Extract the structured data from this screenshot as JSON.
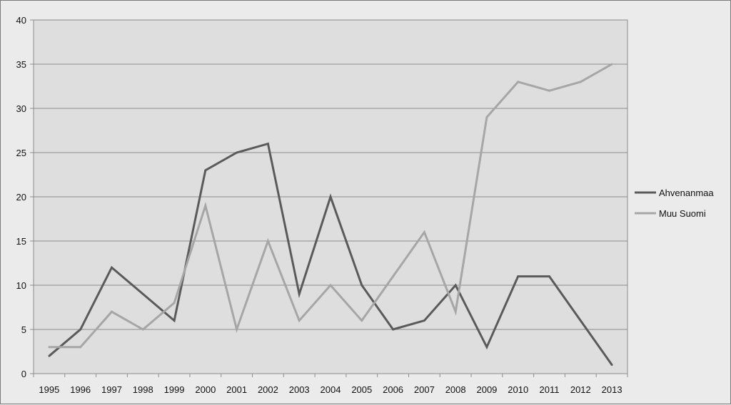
{
  "chart_data": {
    "type": "line",
    "title": "",
    "xlabel": "",
    "ylabel": "",
    "x": [
      "1995",
      "1996",
      "1997",
      "1998",
      "1999",
      "2000",
      "2001",
      "2002",
      "2003",
      "2004",
      "2005",
      "2006",
      "2007",
      "2008",
      "2009",
      "2010",
      "2011",
      "2012",
      "2013"
    ],
    "ylim": [
      0,
      40
    ],
    "yticks": [
      0,
      5,
      10,
      15,
      20,
      25,
      30,
      35,
      40
    ],
    "grid": true,
    "legend_position": "right",
    "series": [
      {
        "name": "Ahvenanmaa",
        "color": "#5a5a5a",
        "values": [
          2,
          5,
          12,
          9,
          6,
          23,
          25,
          26,
          9,
          20,
          10,
          5,
          6,
          10,
          3,
          11,
          11,
          6,
          1
        ]
      },
      {
        "name": "Muu Suomi",
        "color": "#a6a6a6",
        "values": [
          3,
          3,
          7,
          5,
          8,
          19,
          5,
          15,
          6,
          10,
          6,
          11,
          16,
          7,
          29,
          33,
          32,
          33,
          35
        ]
      }
    ]
  }
}
